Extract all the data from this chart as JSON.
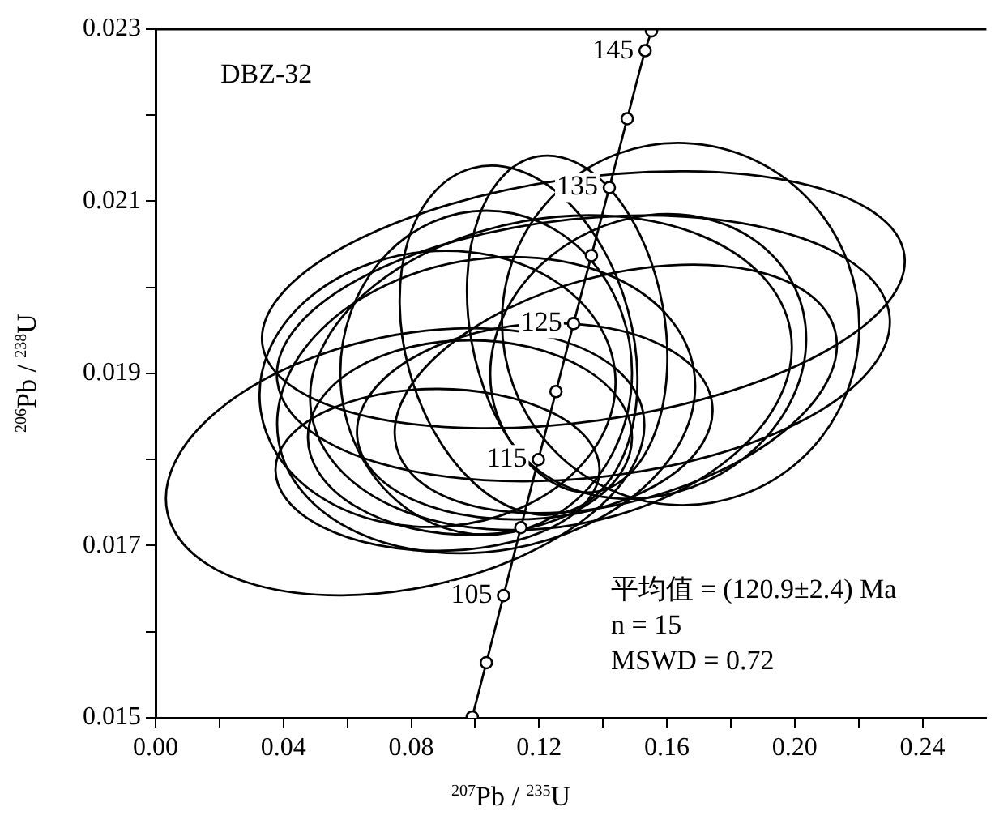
{
  "chart_data": {
    "type": "line",
    "xlabel": "$^{207}$Pb / $^{235}$U",
    "ylabel": "$^{206}$Pb / $^{238}$U",
    "xlim": [
      0,
      0.26
    ],
    "ylim": [
      0.015,
      0.023
    ],
    "xticks": [
      {
        "value": 0,
        "label": "0.00"
      },
      {
        "value": 0.02,
        "label": null
      },
      {
        "value": 0.04,
        "label": "0.04"
      },
      {
        "value": 0.06,
        "label": null
      },
      {
        "value": 0.08,
        "label": "0.08"
      },
      {
        "value": 0.1,
        "label": null
      },
      {
        "value": 0.12,
        "label": "0.12"
      },
      {
        "value": 0.14,
        "label": null
      },
      {
        "value": 0.16,
        "label": "0.16"
      },
      {
        "value": 0.18,
        "label": null
      },
      {
        "value": 0.2,
        "label": "0.20"
      },
      {
        "value": 0.22,
        "label": null
      },
      {
        "value": 0.24,
        "label": "0.24"
      }
    ],
    "yticks": [
      0.015,
      {
        "value": 0.016,
        "label": null
      },
      0.017,
      {
        "value": 0.018,
        "label": null
      },
      0.019,
      {
        "value": 0.02,
        "label": null
      },
      0.021,
      {
        "value": 0.022,
        "label": null
      },
      0.023
    ],
    "grid": false,
    "legend": false,
    "series": [
      {
        "type": "line",
        "marker": "circle",
        "color": "#000000",
        "x": [
          0.0991,
          0.1035,
          0.1089,
          0.1143,
          0.1198,
          0.1253,
          0.1308,
          0.1364,
          0.142,
          0.1476,
          0.1532,
          0.1552
        ],
        "values": [
          0.01501,
          0.01564,
          0.01642,
          0.01721,
          0.018,
          0.01879,
          0.01958,
          0.02037,
          0.02116,
          0.02196,
          0.02275,
          0.02298
        ]
      }
    ],
    "annotations": [
      "DBZ-32",
      "平均值 = (120.9±2.4) Ma",
      "n = 15",
      "MSWD = 0.72",
      {
        "text": "105",
        "x": 0.1089,
        "y": 0.01642
      },
      {
        "text": "115",
        "x": 0.1198,
        "y": 0.018
      },
      {
        "text": "125",
        "x": 0.1308,
        "y": 0.01958
      },
      {
        "text": "135",
        "x": 0.142,
        "y": 0.02116
      },
      {
        "text": "145",
        "x": 0.1532,
        "y": 0.02275
      }
    ]
  }
}
